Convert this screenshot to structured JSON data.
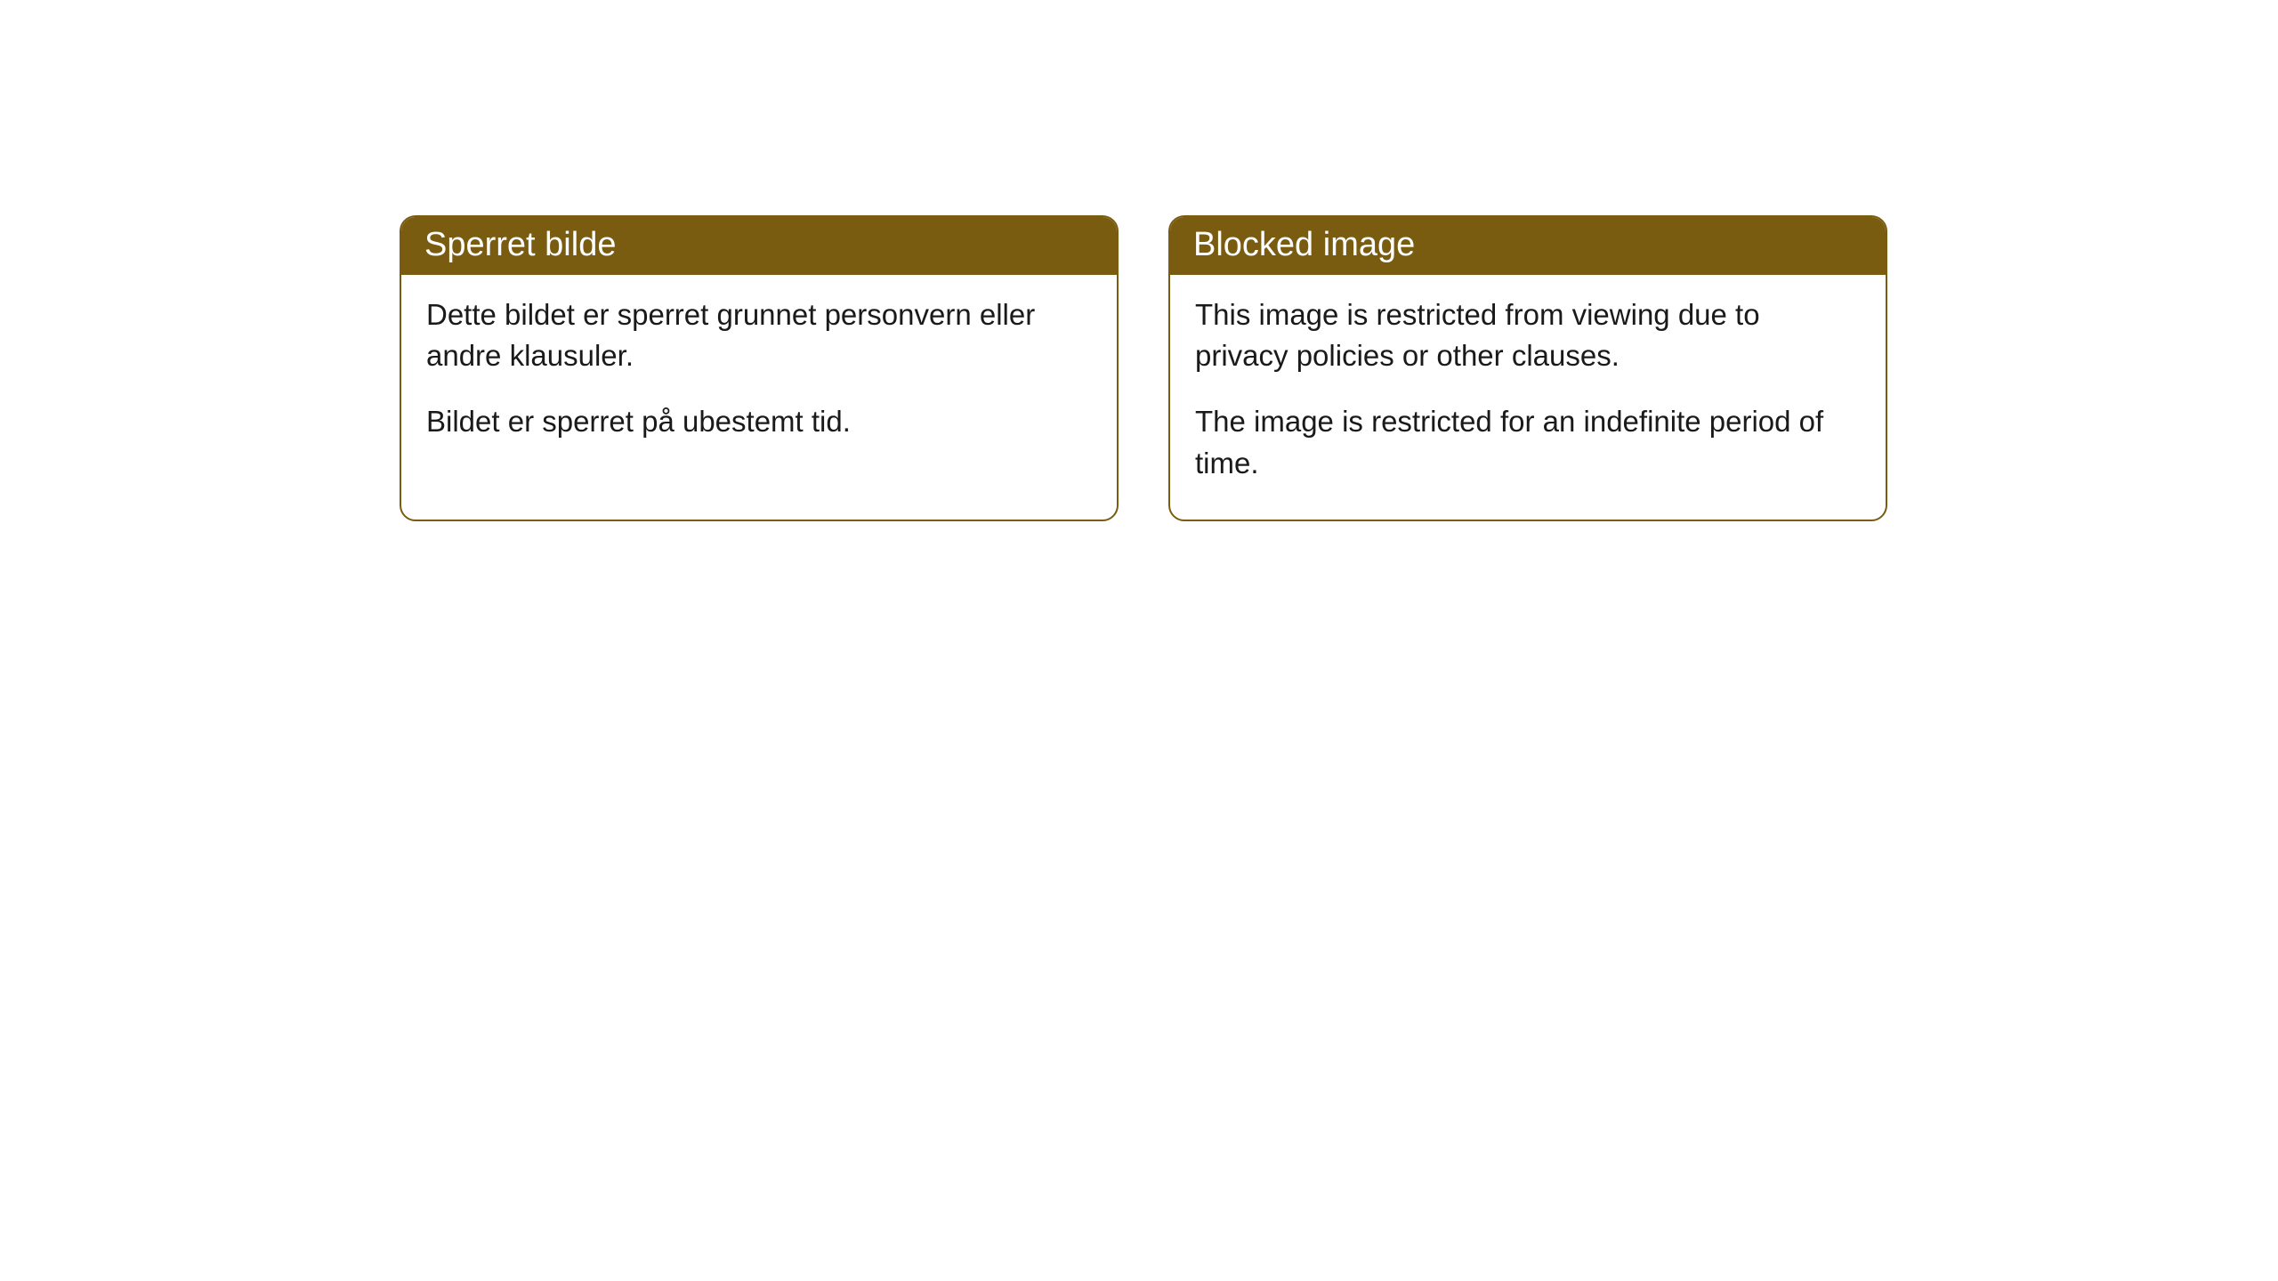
{
  "cards": [
    {
      "header": "Sperret bilde",
      "paragraph1": "Dette bildet er sperret grunnet personvern eller andre klausuler.",
      "paragraph2": "Bildet er sperret på ubestemt tid."
    },
    {
      "header": "Blocked image",
      "paragraph1": "This image is restricted from viewing due to privacy policies or other clauses.",
      "paragraph2": "The image is restricted for an indefinite period of time."
    }
  ],
  "styling": {
    "header_bg_color": "#7a5c11",
    "header_text_color": "#ffffff",
    "border_color": "#7a5c11",
    "body_text_color": "#1a1a1a",
    "card_bg_color": "#ffffff",
    "page_bg_color": "#ffffff",
    "border_radius": 18,
    "header_fontsize": 38,
    "body_fontsize": 33
  }
}
